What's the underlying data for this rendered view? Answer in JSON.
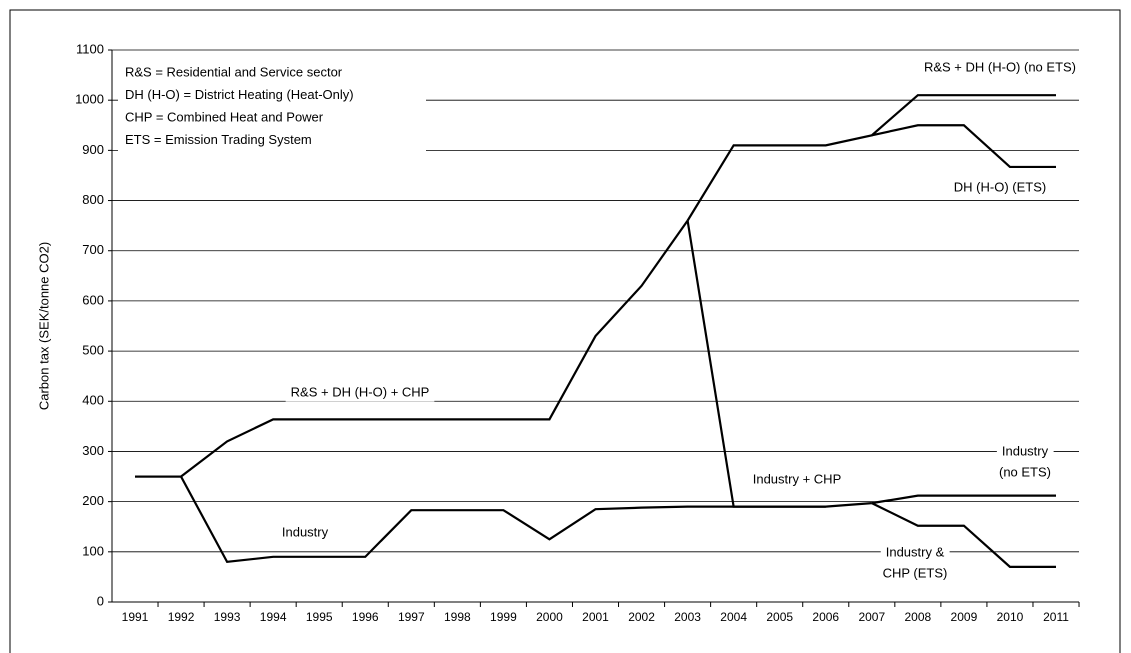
{
  "chart_data": {
    "type": "line",
    "y_label": "Carbon tax (SEK/tonne CO2)",
    "notes": [
      "R&S = Residential and Service sector",
      "DH (H-O) = District Heating (Heat-Only)",
      "CHP = Combined Heat and Power",
      "ETS = Emission Trading System"
    ],
    "categories": [
      "1991",
      "1992",
      "1993",
      "1994",
      "1995",
      "1996",
      "1997",
      "1998",
      "1999",
      "2000",
      "2001",
      "2002",
      "2003",
      "2004",
      "2005",
      "2006",
      "2007",
      "2008",
      "2009",
      "2010",
      "2011"
    ],
    "ylim": [
      0,
      1100
    ],
    "yticks": [
      0,
      100,
      200,
      300,
      400,
      500,
      600,
      700,
      800,
      900,
      1000,
      1100
    ],
    "grid": true,
    "series": [
      {
        "name": [
          "R&S + DH (H-O) + CHP"
        ],
        "color": "#000000",
        "values": [
          250,
          250,
          320,
          364,
          364,
          364,
          364,
          364,
          364,
          364,
          530,
          630,
          760,
          null,
          null,
          null,
          null,
          null,
          null,
          null,
          null
        ]
      },
      {
        "name": [
          "R&S + DH (H-O) (no ETS)"
        ],
        "color": "#000000",
        "values": [
          null,
          null,
          null,
          null,
          null,
          null,
          null,
          null,
          null,
          null,
          null,
          null,
          760,
          910,
          910,
          910,
          930,
          1010,
          1010,
          1010,
          1010
        ]
      },
      {
        "name": [
          "DH (H-O) (ETS)"
        ],
        "color": "#000000",
        "values": [
          null,
          null,
          null,
          null,
          null,
          null,
          null,
          null,
          null,
          null,
          null,
          null,
          null,
          null,
          null,
          null,
          930,
          950,
          950,
          867,
          867
        ]
      },
      {
        "name": [
          "Industry + CHP"
        ],
        "color": "#000000",
        "values": [
          null,
          null,
          null,
          null,
          null,
          null,
          null,
          null,
          null,
          null,
          null,
          null,
          760,
          190,
          190,
          190,
          197,
          null,
          null,
          null,
          null
        ]
      },
      {
        "name": [
          "Industry",
          "(no ETS)"
        ],
        "color": "#000000",
        "values": [
          null,
          null,
          null,
          null,
          null,
          null,
          null,
          null,
          null,
          null,
          null,
          null,
          null,
          null,
          null,
          null,
          197,
          212,
          212,
          212,
          212
        ]
      },
      {
        "name": [
          "Industry &",
          "CHP (ETS)"
        ],
        "color": "#000000",
        "values": [
          null,
          null,
          null,
          null,
          null,
          null,
          null,
          null,
          null,
          null,
          null,
          null,
          null,
          null,
          null,
          null,
          197,
          152,
          152,
          70,
          70
        ]
      },
      {
        "name": [
          "Industry"
        ],
        "color": "#000000",
        "values": [
          250,
          250,
          80,
          90,
          90,
          90,
          183,
          183,
          183,
          125,
          185,
          188,
          190,
          190,
          190,
          190,
          null,
          null,
          null,
          null,
          null
        ]
      }
    ]
  }
}
